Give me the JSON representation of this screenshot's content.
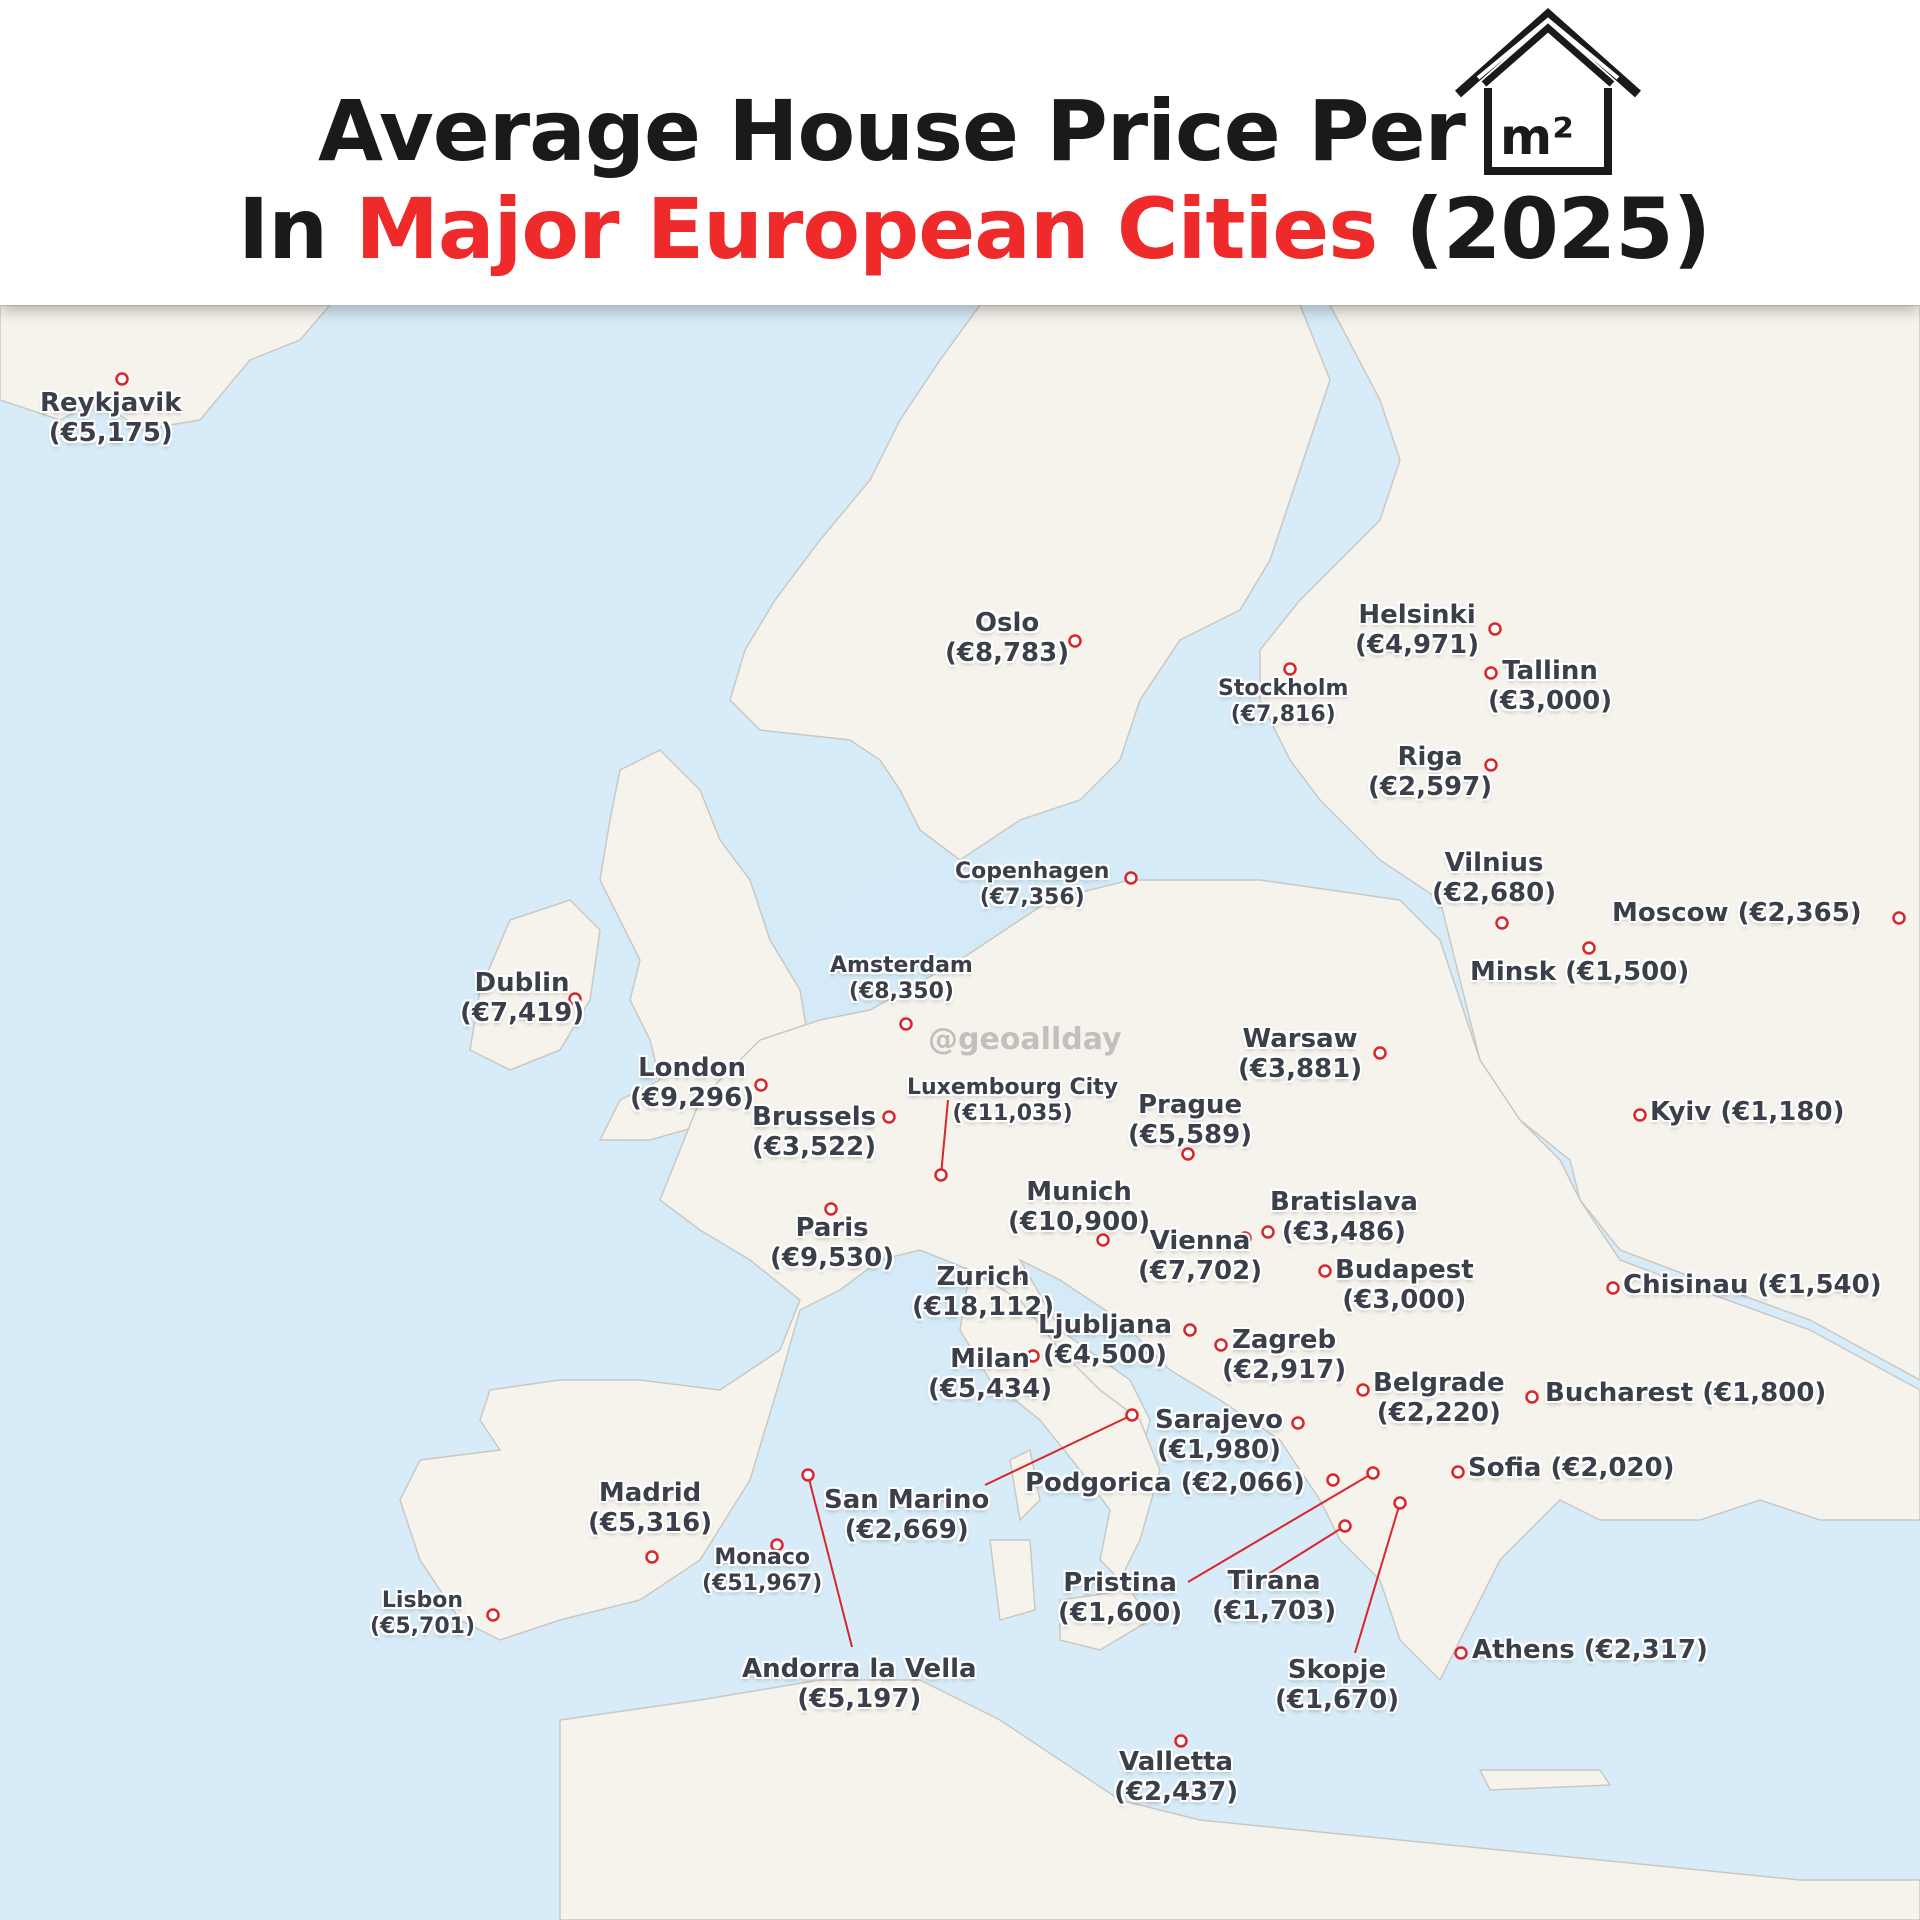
{
  "header": {
    "title_line1": "Average House Price Per",
    "unit": "m²",
    "title_line2_prefix": "In ",
    "title_line2_accent": "Major European Cities",
    "title_line2_suffix": " (2025)"
  },
  "watermark": "@geoallday",
  "colors": {
    "sea": "#d7ecf8",
    "land": "#f6f3ec",
    "accent": "#ee2a2a",
    "marker": "#d9262a",
    "label": "#3a3f4a"
  },
  "cities": [
    {
      "id": "reykjavik",
      "name": "Reykjavik",
      "price": "(€5,175)"
    },
    {
      "id": "oslo",
      "name": "Oslo",
      "price": "(€8,783)"
    },
    {
      "id": "helsinki",
      "name": "Helsinki",
      "price": "(€4,971)"
    },
    {
      "id": "stockholm",
      "name": "Stockholm",
      "price": "(€7,816)"
    },
    {
      "id": "tallinn",
      "name": "Tallinn",
      "price": "(€3,000)"
    },
    {
      "id": "riga",
      "name": "Riga",
      "price": "(€2,597)"
    },
    {
      "id": "copenhagen",
      "name": "Copenhagen",
      "price": "(€7,356)"
    },
    {
      "id": "vilnius",
      "name": "Vilnius",
      "price": "(€2,680)"
    },
    {
      "id": "moscow",
      "name": "Moscow",
      "price": "(€2,365)"
    },
    {
      "id": "minsk",
      "name": "Minsk",
      "price": "(€1,500)"
    },
    {
      "id": "dublin",
      "name": "Dublin",
      "price": "(€7,419)"
    },
    {
      "id": "amsterdam",
      "name": "Amsterdam",
      "price": "(€8,350)"
    },
    {
      "id": "london",
      "name": "London",
      "price": "(€9,296)"
    },
    {
      "id": "warsaw",
      "name": "Warsaw",
      "price": "(€3,881)"
    },
    {
      "id": "luxembourg",
      "name": "Luxembourg City",
      "price": "(€11,035)"
    },
    {
      "id": "brussels",
      "name": "Brussels",
      "price": "(€3,522)"
    },
    {
      "id": "prague",
      "name": "Prague",
      "price": "(€5,589)"
    },
    {
      "id": "kyiv",
      "name": "Kyiv",
      "price": "(€1,180)"
    },
    {
      "id": "paris",
      "name": "Paris",
      "price": "(€9,530)"
    },
    {
      "id": "munich",
      "name": "Munich",
      "price": "(€10,900)"
    },
    {
      "id": "bratislava",
      "name": "Bratislava",
      "price": "(€3,486)"
    },
    {
      "id": "vienna",
      "name": "Vienna",
      "price": "(€7,702)"
    },
    {
      "id": "zurich",
      "name": "Zurich",
      "price": "(€18,112)"
    },
    {
      "id": "budapest",
      "name": "Budapest",
      "price": "(€3,000)"
    },
    {
      "id": "chisinau",
      "name": "Chisinau",
      "price": "(€1,540)"
    },
    {
      "id": "ljubljana",
      "name": "Ljubljana",
      "price": "(€4,500)"
    },
    {
      "id": "zagreb",
      "name": "Zagreb",
      "price": "(€2,917)"
    },
    {
      "id": "milan",
      "name": "Milan",
      "price": "(€5,434)"
    },
    {
      "id": "belgrade",
      "name": "Belgrade",
      "price": "(€2,220)"
    },
    {
      "id": "bucharest",
      "name": "Bucharest",
      "price": "(€1,800)"
    },
    {
      "id": "sarajevo",
      "name": "Sarajevo",
      "price": "(€1,980)"
    },
    {
      "id": "podgorica",
      "name": "Podgorica",
      "price": "(€2,066)"
    },
    {
      "id": "sofia",
      "name": "Sofia",
      "price": "(€2,020)"
    },
    {
      "id": "san_marino",
      "name": "San Marino",
      "price": "(€2,669)"
    },
    {
      "id": "madrid",
      "name": "Madrid",
      "price": "(€5,316)"
    },
    {
      "id": "monaco",
      "name": "Monaco",
      "price": "(€51,967)"
    },
    {
      "id": "lisbon",
      "name": "Lisbon",
      "price": "(€5,701)"
    },
    {
      "id": "pristina",
      "name": "Pristina",
      "price": "(€1,600)"
    },
    {
      "id": "tirana",
      "name": "Tirana",
      "price": "(€1,703)"
    },
    {
      "id": "athens",
      "name": "Athens",
      "price": "(€2,317)"
    },
    {
      "id": "andorra",
      "name": "Andorra la Vella",
      "price": "(€5,197)"
    },
    {
      "id": "skopje",
      "name": "Skopje",
      "price": "(€1,670)"
    },
    {
      "id": "valletta",
      "name": "Valletta",
      "price": "(€2,437)"
    }
  ]
}
